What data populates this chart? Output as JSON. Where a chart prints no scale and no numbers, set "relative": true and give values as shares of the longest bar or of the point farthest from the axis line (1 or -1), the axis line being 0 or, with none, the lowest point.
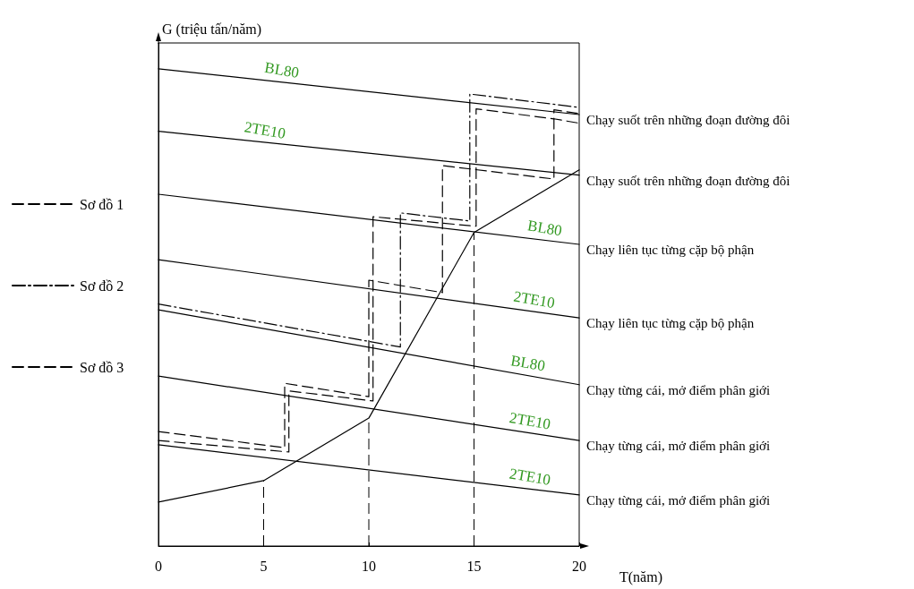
{
  "chart_data": {
    "type": "line",
    "relative": true,
    "xlabel": "T(năm)",
    "ylabel": "G (triệu tấn/năm)",
    "xlim": [
      0,
      20
    ],
    "xticks": [
      0,
      5,
      10,
      15,
      20
    ],
    "grid": false,
    "legend": "left",
    "marker": "none",
    "series": [
      {
        "color": "#000000",
        "line_style": "solid",
        "x": [
          0,
          5,
          10,
          15,
          20
        ],
        "values": [
          0.092,
          0.137,
          0.268,
          0.657,
          0.788
        ]
      },
      {
        "name": "Chạy suốt trên những đoạn đường đôi",
        "color": "#000000",
        "line_style": "solid",
        "x": [
          0,
          20
        ],
        "values": [
          1.0,
          0.904
        ]
      },
      {
        "name": "Chạy suốt trên những đoạn đường đôi",
        "color": "#000000",
        "line_style": "solid",
        "x": [
          0,
          20
        ],
        "values": [
          0.869,
          0.777
        ]
      },
      {
        "name": "Chạy liên tục từng cặp bộ phận",
        "color": "#000000",
        "line_style": "solid",
        "x": [
          0,
          20
        ],
        "values": [
          0.737,
          0.632
        ]
      },
      {
        "name": "Chạy liên tục từng cặp bộ phận",
        "color": "#000000",
        "line_style": "solid",
        "x": [
          0,
          20
        ],
        "values": [
          0.6,
          0.478
        ]
      },
      {
        "name": "Chạy từng cái, mở điểm phân giới",
        "color": "#000000",
        "line_style": "solid",
        "x": [
          0,
          20
        ],
        "values": [
          0.495,
          0.338
        ]
      },
      {
        "name": "Chạy từng cái, mở điểm phân giới",
        "color": "#000000",
        "line_style": "solid",
        "x": [
          0,
          20
        ],
        "values": [
          0.356,
          0.221
        ]
      },
      {
        "name": "Chạy từng cái, mở điểm phân giới",
        "color": "#000000",
        "line_style": "solid",
        "x": [
          0,
          20
        ],
        "values": [
          0.212,
          0.107
        ]
      },
      {
        "name": "Sơ đồ 1",
        "color": "#000000",
        "line_style": "dashed",
        "x": [
          0,
          6.0,
          6.0,
          10.0,
          10.0,
          13.5,
          13.5,
          18.8,
          18.8,
          20
        ],
        "values": [
          0.24,
          0.206,
          0.341,
          0.313,
          0.557,
          0.531,
          0.797,
          0.769,
          0.914,
          0.906
        ]
      },
      {
        "name": "Sơ đồ 2",
        "color": "#000000",
        "line_style": "dashdot",
        "x": [
          0,
          11.5,
          11.5,
          14.8,
          14.8,
          20
        ],
        "values": [
          0.507,
          0.417,
          0.698,
          0.681,
          0.947,
          0.919
        ]
      },
      {
        "name": "Sơ đồ 3",
        "color": "#000000",
        "line_style": "dashed",
        "x": [
          0,
          6.2,
          6.2,
          10.2,
          10.2,
          15.1,
          15.1,
          18.8,
          20
        ],
        "values": [
          0.221,
          0.197,
          0.325,
          0.304,
          0.69,
          0.67,
          0.916,
          0.895,
          0.886
        ]
      }
    ],
    "ref_lines": [
      {
        "axis": "x",
        "value": 5,
        "line_style": "dashed"
      },
      {
        "axis": "x",
        "value": 10,
        "line_style": "dashed"
      },
      {
        "axis": "x",
        "value": 15,
        "line_style": "dashed"
      }
    ],
    "annotations": [
      {
        "text": "BL80",
        "x": 5.8,
        "y": 0.972
      },
      {
        "text": "2TE10",
        "x": 5.0,
        "y": 0.846
      },
      {
        "text": "BL80",
        "x": 18.3,
        "y": 0.641
      },
      {
        "text": "2TE10",
        "x": 17.8,
        "y": 0.491
      },
      {
        "text": "BL80",
        "x": 17.5,
        "y": 0.358
      },
      {
        "text": "2TE10",
        "x": 17.6,
        "y": 0.237
      },
      {
        "text": "2TE10",
        "x": 17.6,
        "y": 0.12
      }
    ]
  }
}
